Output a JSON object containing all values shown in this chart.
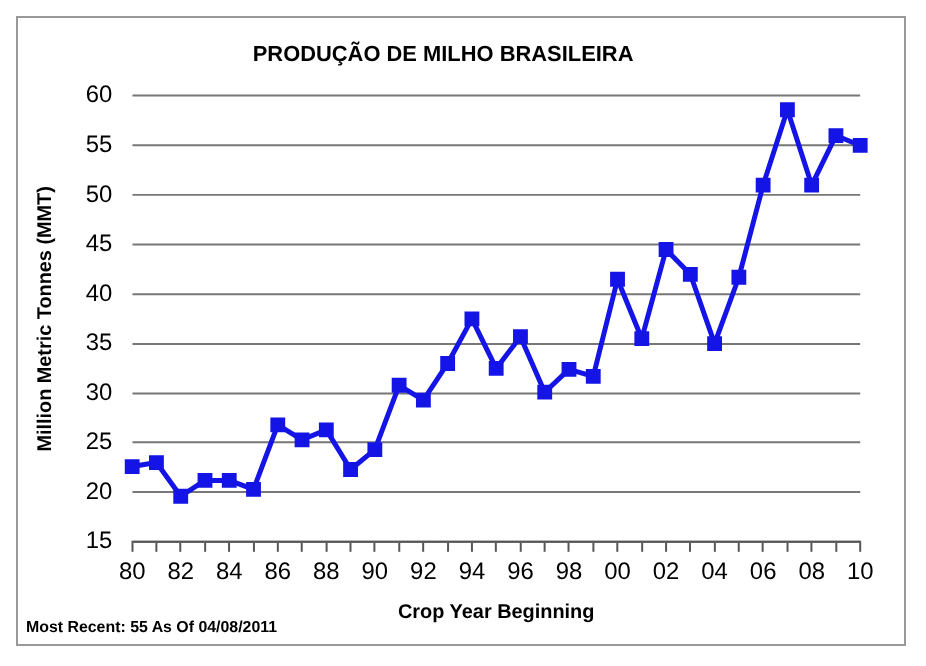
{
  "chart_data": {
    "type": "line",
    "title": "PRODUÇÃO DE MILHO BRASILEIRA",
    "xlabel": "Crop Year Beginning",
    "ylabel": "Million Metric Tonnes (MMT)",
    "annotations": [
      "Most Recent: 55 As Of 04/08/2011"
    ],
    "categories": [
      "80",
      null,
      "82",
      null,
      "84",
      null,
      "86",
      null,
      "88",
      null,
      "90",
      null,
      "92",
      null,
      "94",
      null,
      "96",
      null,
      "98",
      null,
      "00",
      null,
      "02",
      null,
      "04",
      null,
      "06",
      null,
      "08",
      null,
      "10"
    ],
    "series": [
      {
        "color": "#1414e6",
        "values": [
          22.6,
          23,
          19.6,
          21.2,
          21.2,
          20.3,
          26.8,
          25.3,
          26.3,
          22.3,
          24.3,
          30.8,
          29.3,
          33,
          37.5,
          32.5,
          35.7,
          30.1,
          32.4,
          31.7,
          41.5,
          35.5,
          44.5,
          42,
          35,
          41.7,
          51,
          58.6,
          51,
          56,
          55
        ]
      }
    ],
    "ylim": [
      15,
      60
    ],
    "yticks": [
      15,
      20,
      25,
      30,
      35,
      40,
      45,
      50,
      55,
      60
    ],
    "grid": "y",
    "legend": false,
    "marker": "square",
    "line_style": "solid"
  }
}
